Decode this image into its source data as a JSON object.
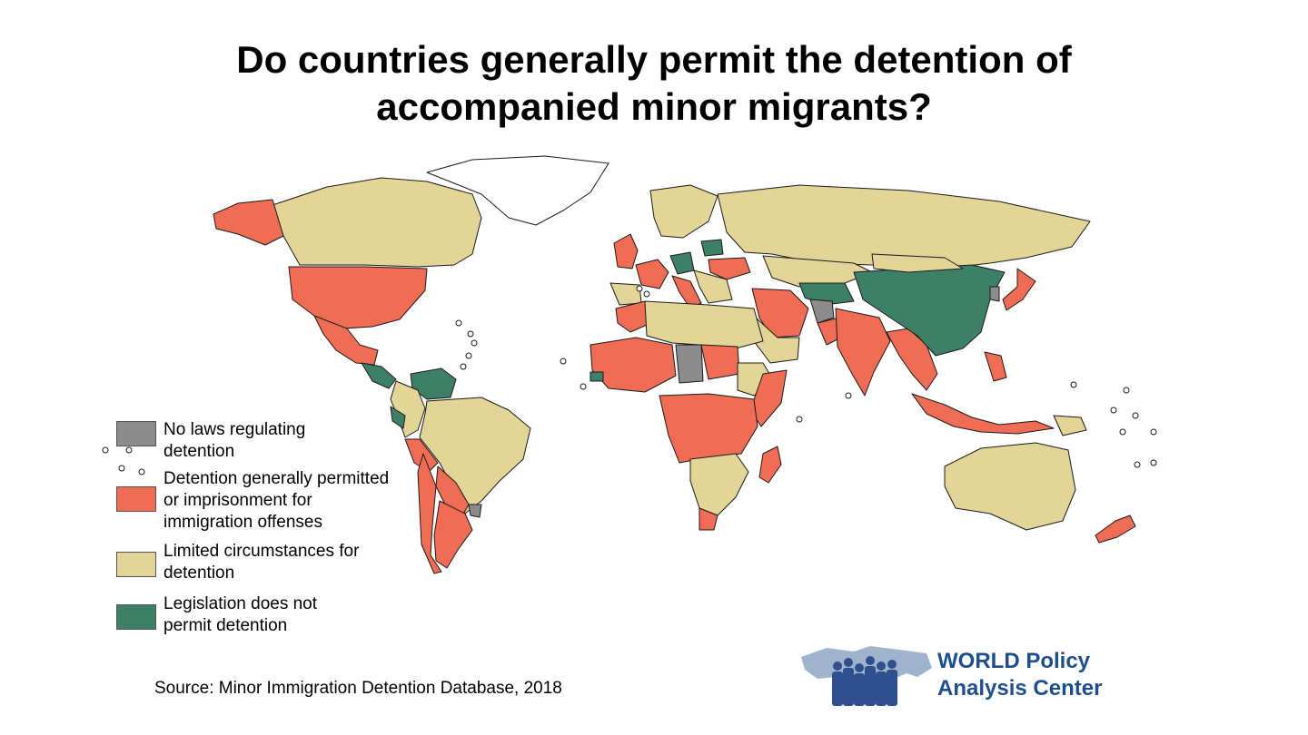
{
  "title": {
    "line1": "Do countries generally permit the detention of",
    "line2": "accompanied minor migrants?"
  },
  "colors": {
    "no_laws": "#8c8c8c",
    "permitted": "#ef6c55",
    "limited": "#e3d597",
    "not_permitted": "#3d7f67",
    "no_data": "#ffffff",
    "border": "#1a1a1a",
    "logo_text": "#1f4e8c",
    "logo_map": "#9fb4cc",
    "logo_people": "#2f4f8f"
  },
  "legend": [
    {
      "key": "no_laws",
      "label_lines": [
        "No laws regulating",
        "detention"
      ]
    },
    {
      "key": "permitted",
      "label_lines": [
        "Detention generally permitted",
        "or imprisonment for",
        "immigration offenses"
      ]
    },
    {
      "key": "limited",
      "label_lines": [
        "Limited circumstances for",
        "detention"
      ]
    },
    {
      "key": "not_permitted",
      "label_lines": [
        "Legislation does not",
        "permit detention"
      ]
    }
  ],
  "source": "Source: Minor Immigration Detention Database, 2018",
  "logo": {
    "line1": "WORLD Policy",
    "line2": "Analysis Center"
  }
}
